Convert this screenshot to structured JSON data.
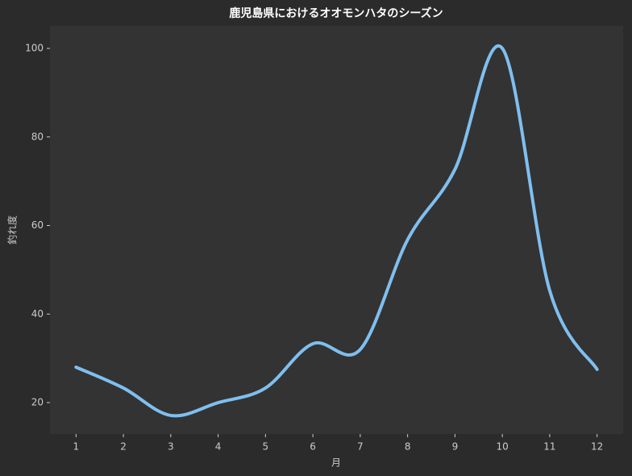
{
  "chart_data": {
    "type": "line",
    "title": "鹿児島県におけるオオモンハタのシーズン",
    "x_label": "月",
    "y_label": "釣れ度",
    "x": [
      1,
      2,
      3,
      4,
      5,
      6,
      7,
      8,
      9,
      10,
      11,
      12
    ],
    "series": [
      {
        "name": "釣れ度",
        "color": "#7fbfef",
        "values": [
          28,
          23.3,
          17.1,
          20,
          23.3,
          33.3,
          32,
          56.8,
          72.7,
          100,
          45.3,
          27.5
        ]
      }
    ],
    "xlim": [
      0.45,
      12.55
    ],
    "ylim": [
      12.9,
      105.1
    ],
    "xticks": [
      1,
      2,
      3,
      4,
      5,
      6,
      7,
      8,
      9,
      10,
      11,
      12
    ],
    "yticks": [
      20,
      40,
      60,
      80,
      100
    ]
  }
}
